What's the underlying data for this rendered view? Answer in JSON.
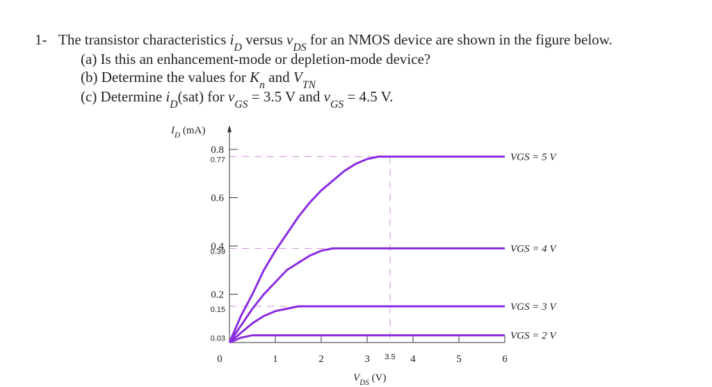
{
  "question": {
    "lines": [
      [
        {
          "text": "1-"
        }
      ],
      [
        {
          "text": "The transistor characteristics "
        },
        {
          "text": "i",
          "style": "i"
        },
        {
          "text": "D",
          "style": "sub"
        },
        {
          "text": " versus "
        },
        {
          "text": "v",
          "style": "i"
        },
        {
          "text": "DS",
          "style": "sub"
        },
        {
          "text": " for an NMOS device are shown in the figure below."
        }
      ],
      [
        {
          "text": "(a) Is this an enhancement-mode or depletion-mode device?"
        }
      ],
      [
        {
          "text": "(b) Determine the values for "
        },
        {
          "text": "K",
          "style": "i"
        },
        {
          "text": "n",
          "style": "sub"
        },
        {
          "text": " and "
        },
        {
          "text": "V",
          "style": "i"
        },
        {
          "text": "TN",
          "style": "sub"
        }
      ],
      [
        {
          "text": "(c) Determine "
        },
        {
          "text": "i",
          "style": "i"
        },
        {
          "text": "D",
          "style": "sub"
        },
        {
          "text": "(sat) for "
        },
        {
          "text": "v",
          "style": "i"
        },
        {
          "text": "GS",
          "style": "sub"
        },
        {
          "text": " = 3.5 V and "
        },
        {
          "text": "v",
          "style": "i"
        },
        {
          "text": "GS",
          "style": "sub"
        },
        {
          "text": " = 4.5 V."
        }
      ]
    ]
  },
  "chart_data": {
    "type": "line",
    "ylabel": [
      {
        "text": "I",
        "style": "i"
      },
      {
        "text": "D",
        "style": "sub"
      },
      {
        "text": " (mA)"
      }
    ],
    "xlabel": [
      {
        "text": "V",
        "style": "i"
      },
      {
        "text": "DS",
        "style": "sub"
      },
      {
        "text": " (V)"
      }
    ],
    "x": [
      0,
      0.25,
      0.5,
      0.75,
      1,
      1.25,
      1.5,
      1.75,
      2,
      2.25,
      2.5,
      2.75,
      3,
      3.25,
      3.5,
      4,
      5,
      6
    ],
    "series": [
      {
        "name": "VGS = 5 V",
        "color": "#8a2be2",
        "values": [
          0,
          0.11,
          0.2,
          0.3,
          0.38,
          0.45,
          0.52,
          0.58,
          0.63,
          0.67,
          0.71,
          0.74,
          0.76,
          0.77,
          0.77,
          0.77,
          0.77,
          0.77
        ]
      },
      {
        "name": "VGS = 4 V",
        "color": "#8a2be2",
        "values": [
          0,
          0.07,
          0.14,
          0.2,
          0.25,
          0.3,
          0.33,
          0.36,
          0.38,
          0.39,
          0.39,
          0.39,
          0.39,
          0.39,
          0.39,
          0.39,
          0.39,
          0.39
        ]
      },
      {
        "name": "VGS = 3 V",
        "color": "#8a2be2",
        "values": [
          0,
          0.04,
          0.08,
          0.11,
          0.13,
          0.14,
          0.15,
          0.15,
          0.15,
          0.15,
          0.15,
          0.15,
          0.15,
          0.15,
          0.15,
          0.15,
          0.15,
          0.15
        ]
      },
      {
        "name": "VGS = 2 V",
        "color": "#8a2be2",
        "values": [
          0,
          0.02,
          0.03,
          0.03,
          0.03,
          0.03,
          0.03,
          0.03,
          0.03,
          0.03,
          0.03,
          0.03,
          0.03,
          0.03,
          0.03,
          0.03,
          0.03,
          0.03
        ]
      }
    ],
    "xlim": [
      0,
      6
    ],
    "ylim": [
      0,
      0.9
    ],
    "xticks": [
      0,
      1,
      2,
      3,
      4,
      5,
      6
    ],
    "yticks": [
      0.2,
      0.4,
      0.6,
      0.8
    ],
    "annotation_yticks": [
      0.77,
      0.39,
      0.15,
      0.03
    ],
    "annotation_xticks": [
      3.5
    ],
    "annotation_color": "#7b2fd8"
  }
}
